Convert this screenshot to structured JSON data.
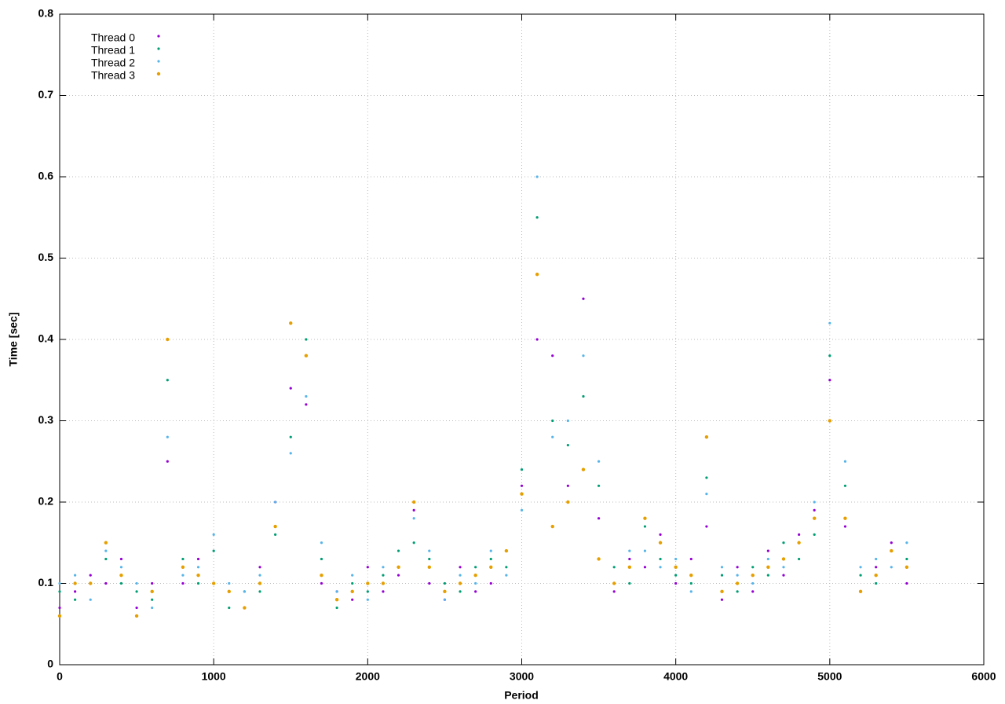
{
  "chart_data": {
    "type": "scatter",
    "x_label": "Period",
    "y_label": "Time [sec]",
    "xlim": [
      0,
      6000
    ],
    "xticks": [
      0,
      1000,
      2000,
      3000,
      4000,
      5000,
      6000
    ],
    "ylim": [
      0,
      0.8
    ],
    "yticks": [
      0,
      0.1,
      0.2,
      0.3,
      0.4,
      0.5,
      0.6,
      0.7,
      0.8
    ],
    "grid": true,
    "legend": "top-left",
    "x": [
      0,
      100,
      200,
      300,
      400,
      500,
      600,
      700,
      800,
      900,
      1000,
      1100,
      1200,
      1300,
      1400,
      1500,
      1600,
      1700,
      1800,
      1900,
      2000,
      2100,
      2200,
      2300,
      2400,
      2500,
      2600,
      2700,
      2800,
      2900,
      3000,
      3100,
      3200,
      3300,
      3400,
      3500,
      3600,
      3700,
      3800,
      3900,
      4000,
      4100,
      4200,
      4300,
      4400,
      4500,
      4600,
      4700,
      4800,
      4900,
      5000,
      5100,
      5200,
      5300,
      5400,
      5500
    ],
    "series": [
      {
        "name": "Thread 0",
        "color": "#9400d3",
        "values": [
          0.07,
          0.09,
          0.11,
          0.1,
          0.13,
          0.07,
          0.1,
          0.25,
          0.1,
          0.13,
          0.1,
          0.09,
          0.07,
          0.12,
          0.2,
          0.34,
          0.32,
          0.1,
          0.09,
          0.08,
          0.12,
          0.09,
          0.11,
          0.19,
          0.1,
          0.08,
          0.12,
          0.09,
          0.1,
          0.14,
          0.22,
          0.4,
          0.38,
          0.22,
          0.45,
          0.18,
          0.09,
          0.13,
          0.12,
          0.16,
          0.1,
          0.13,
          0.17,
          0.08,
          0.12,
          0.09,
          0.14,
          0.11,
          0.16,
          0.19,
          0.35,
          0.17,
          0.09,
          0.12,
          0.15,
          0.1
        ]
      },
      {
        "name": "Thread 1",
        "color": "#009e73",
        "values": [
          0.09,
          0.08,
          0.1,
          0.13,
          0.1,
          0.09,
          0.08,
          0.35,
          0.13,
          0.1,
          0.14,
          0.07,
          0.09,
          0.09,
          0.16,
          0.28,
          0.4,
          0.13,
          0.07,
          0.1,
          0.09,
          0.11,
          0.14,
          0.15,
          0.13,
          0.1,
          0.09,
          0.12,
          0.13,
          0.12,
          0.24,
          0.55,
          0.3,
          0.27,
          0.33,
          0.22,
          0.12,
          0.1,
          0.17,
          0.13,
          0.11,
          0.1,
          0.23,
          0.11,
          0.09,
          0.12,
          0.11,
          0.15,
          0.13,
          0.16,
          0.38,
          0.22,
          0.11,
          0.1,
          0.14,
          0.13
        ]
      },
      {
        "name": "Thread 2",
        "color": "#56b4e9",
        "values": [
          0.1,
          0.11,
          0.08,
          0.14,
          0.12,
          0.1,
          0.07,
          0.28,
          0.11,
          0.12,
          0.16,
          0.1,
          0.09,
          0.11,
          0.2,
          0.26,
          0.33,
          0.15,
          0.09,
          0.11,
          0.08,
          0.12,
          0.12,
          0.18,
          0.14,
          0.08,
          0.11,
          0.1,
          0.14,
          0.11,
          0.19,
          0.6,
          0.28,
          0.3,
          0.38,
          0.25,
          0.1,
          0.14,
          0.14,
          0.12,
          0.13,
          0.09,
          0.21,
          0.12,
          0.11,
          0.1,
          0.13,
          0.12,
          0.15,
          0.2,
          0.42,
          0.25,
          0.12,
          0.13,
          0.12,
          0.15
        ]
      },
      {
        "name": "Thread 3",
        "color": "#e69f00",
        "values": [
          0.06,
          0.1,
          0.1,
          0.15,
          0.11,
          0.06,
          0.09,
          0.4,
          0.12,
          0.11,
          0.1,
          0.09,
          0.07,
          0.1,
          0.17,
          0.42,
          0.38,
          0.11,
          0.08,
          0.09,
          0.1,
          0.1,
          0.12,
          0.2,
          0.12,
          0.09,
          0.1,
          0.11,
          0.12,
          0.14,
          0.21,
          0.48,
          0.17,
          0.2,
          0.24,
          0.13,
          0.1,
          0.12,
          0.18,
          0.15,
          0.12,
          0.11,
          0.28,
          0.09,
          0.1,
          0.11,
          0.12,
          0.13,
          0.15,
          0.18,
          0.3,
          0.18,
          0.09,
          0.11,
          0.14,
          0.12
        ]
      }
    ]
  }
}
